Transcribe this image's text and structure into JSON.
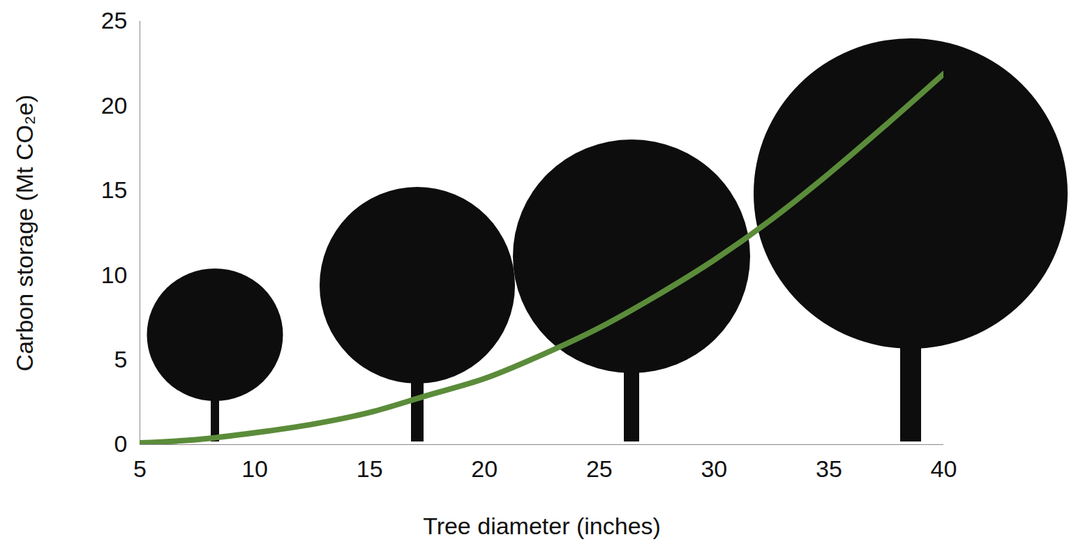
{
  "chart_data": {
    "type": "line",
    "x_label": "Tree diameter (inches)",
    "y_label": "Carbon storage (Mt CO₂e)",
    "x": [
      5,
      7.5,
      10,
      12.5,
      15,
      17.5,
      20,
      22.5,
      25,
      27.5,
      30,
      32.5,
      35,
      37.5,
      40
    ],
    "values": [
      0.1,
      0.3,
      0.7,
      1.2,
      1.9,
      2.9,
      3.9,
      5.3,
      6.9,
      8.8,
      10.9,
      13.3,
      16.0,
      18.9,
      21.9
    ],
    "color": "#5b8c3a",
    "xlim": [
      5,
      40
    ],
    "xticks": [
      5,
      10,
      15,
      20,
      25,
      30,
      35,
      40
    ],
    "ylim": [
      0,
      25
    ],
    "yticks": [
      0,
      5,
      10,
      15,
      20,
      25
    ],
    "grid": false
  }
}
